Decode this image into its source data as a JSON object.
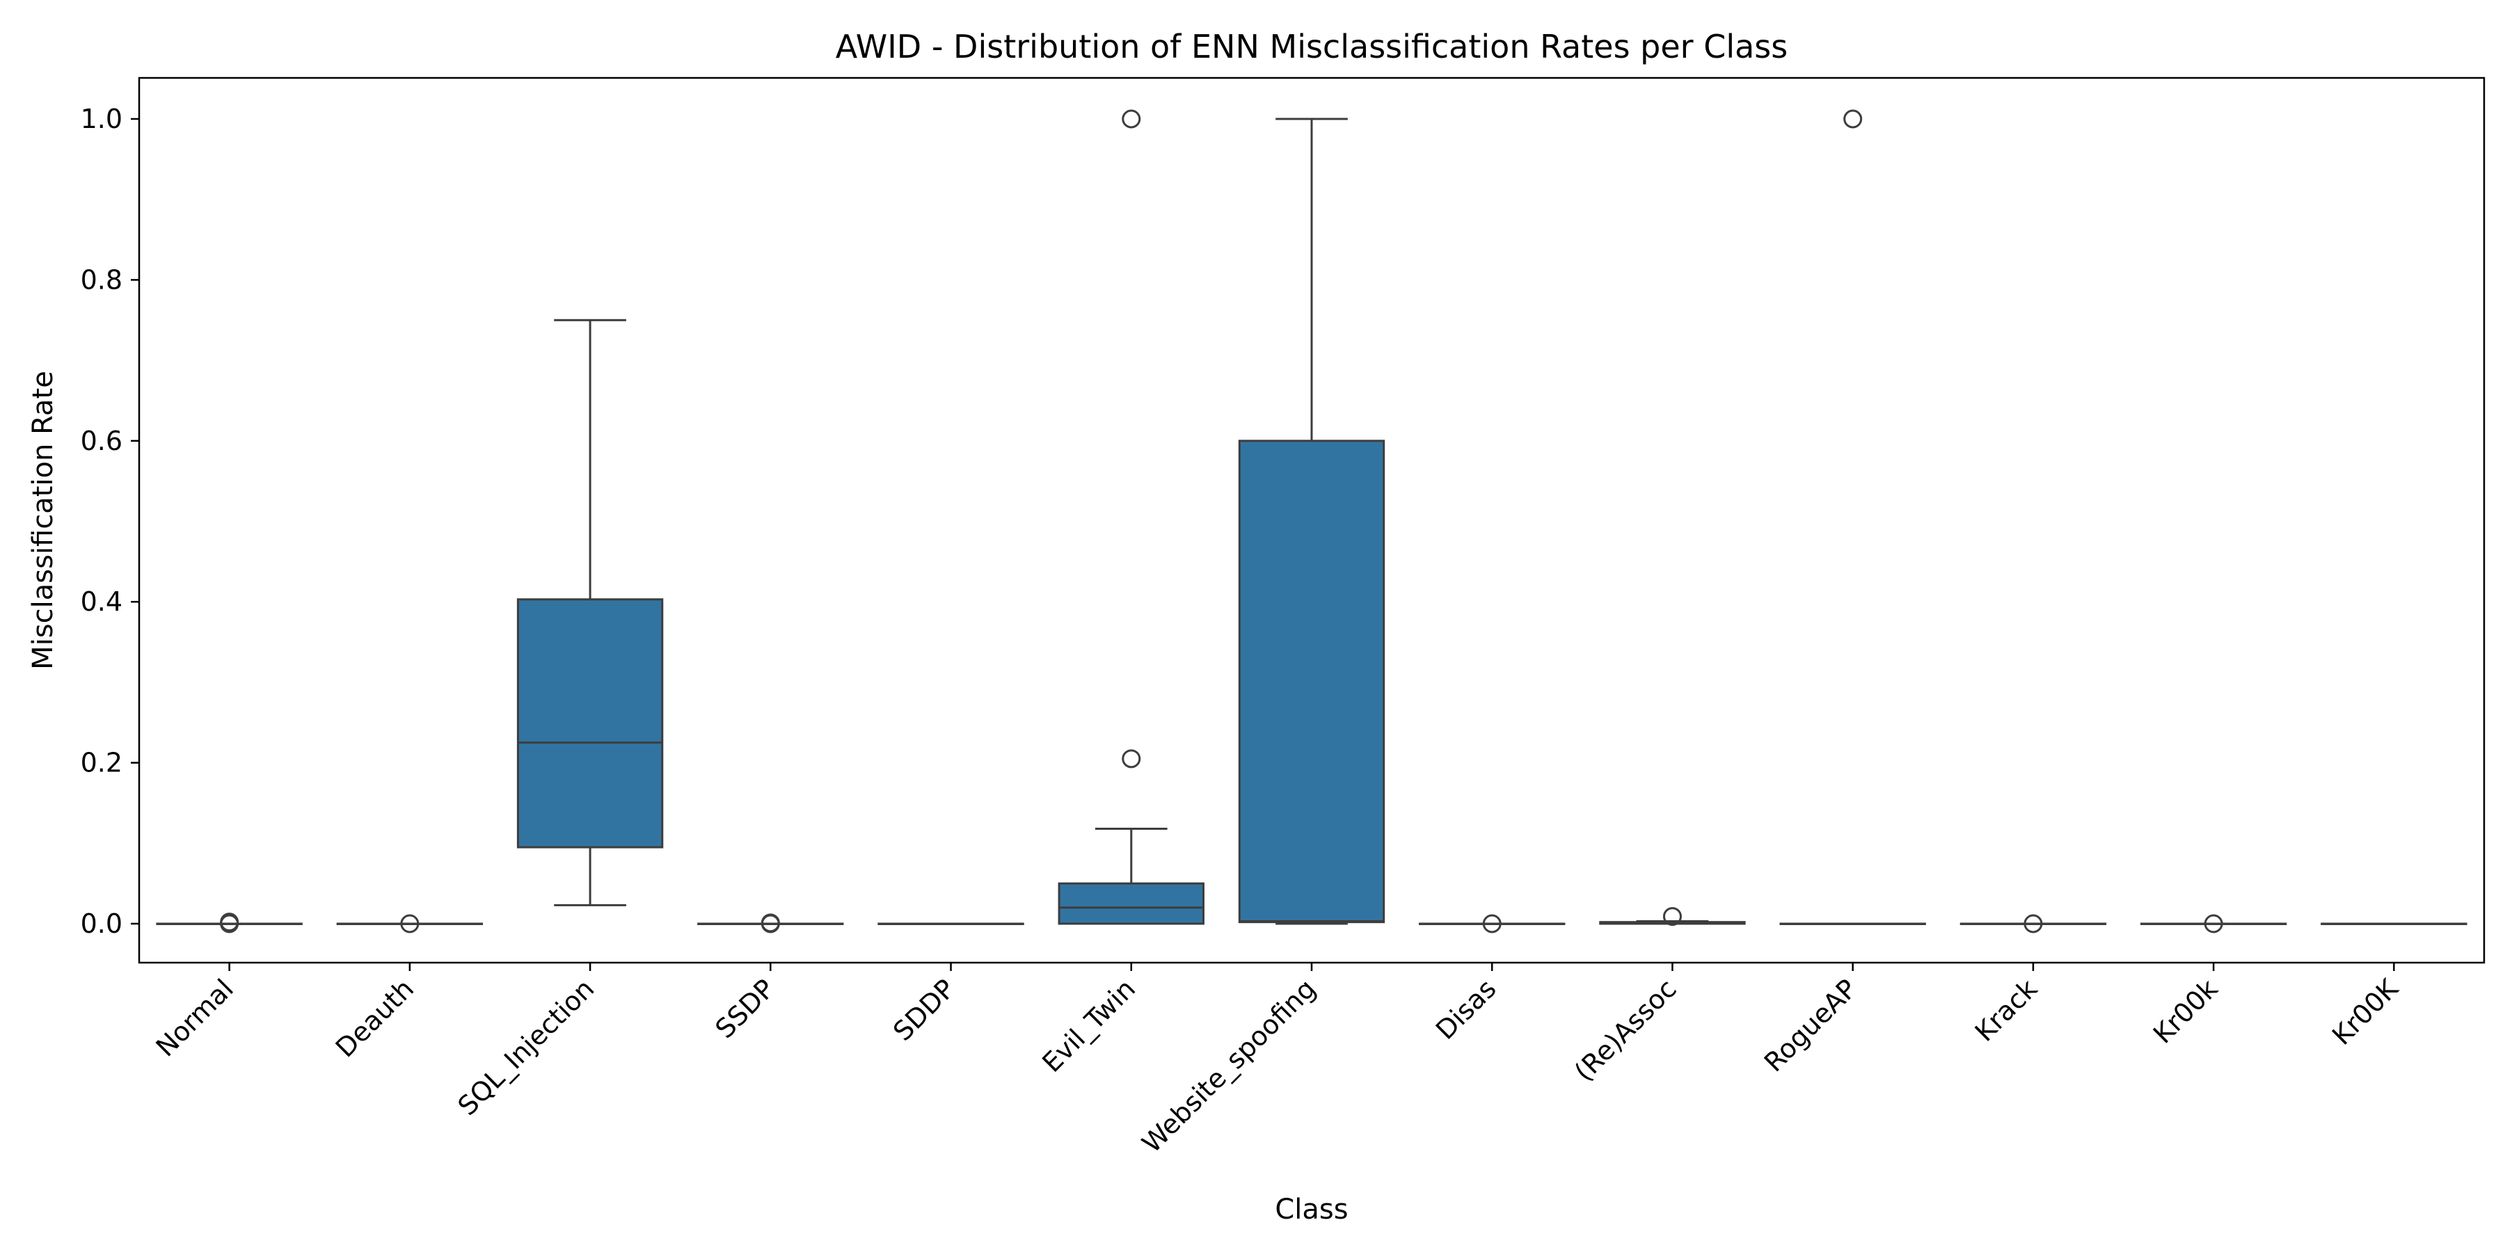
{
  "chart_data": {
    "type": "box",
    "title": "AWID - Distribution of ENN Misclassification Rates per Class",
    "xlabel": "Class",
    "ylabel": "Misclassification Rate",
    "ylim": [
      -0.052,
      1.05
    ],
    "yticks": [
      "0.0",
      "0.2",
      "0.4",
      "0.6",
      "0.8",
      "1.0"
    ],
    "grid": false,
    "legend": "none",
    "box_color": "#3274a1",
    "line_color": "#3d3d3d",
    "categories": [
      "Normal",
      "Deauth",
      "SQL_Injection",
      "SSDP",
      "SDDP",
      "Evil_Twin",
      "Website_spoofing",
      "Disas",
      "(Re)Assoc",
      "RogueAP",
      "Krack",
      "Kr00k",
      "Kr00K"
    ],
    "boxes": [
      {
        "category": "Normal",
        "q1": 0.0,
        "median": 0.0,
        "q3": 0.0,
        "whisker_low": 0.0,
        "whisker_high": 0.0,
        "outliers": [
          0.0,
          0.002
        ]
      },
      {
        "category": "Deauth",
        "q1": 0.0,
        "median": 0.0,
        "q3": 0.0,
        "whisker_low": 0.0,
        "whisker_high": 0.0,
        "outliers": [
          0.0
        ]
      },
      {
        "category": "SQL_Injection",
        "q1": 0.095,
        "median": 0.225,
        "q3": 0.403,
        "whisker_low": 0.023,
        "whisker_high": 0.75,
        "outliers": []
      },
      {
        "category": "SSDP",
        "q1": 0.0,
        "median": 0.0,
        "q3": 0.0,
        "whisker_low": 0.0,
        "whisker_high": 0.0,
        "outliers": [
          0.0,
          0.001
        ]
      },
      {
        "category": "SDDP",
        "q1": 0.0,
        "median": 0.0,
        "q3": 0.0,
        "whisker_low": 0.0,
        "whisker_high": 0.0,
        "outliers": []
      },
      {
        "category": "Evil_Twin",
        "q1": 0.0,
        "median": 0.02,
        "q3": 0.05,
        "whisker_low": 0.0,
        "whisker_high": 0.118,
        "outliers": [
          0.205,
          1.0
        ]
      },
      {
        "category": "Website_spoofing",
        "q1": 0.002,
        "median": 0.003,
        "q3": 0.6,
        "whisker_low": 0.0,
        "whisker_high": 1.0,
        "outliers": []
      },
      {
        "category": "Disas",
        "q1": 0.0,
        "median": 0.0,
        "q3": 0.0,
        "whisker_low": 0.0,
        "whisker_high": 0.0,
        "outliers": [
          0.0
        ]
      },
      {
        "category": "(Re)Assoc",
        "q1": 0.0,
        "median": 0.001,
        "q3": 0.002,
        "whisker_low": 0.0,
        "whisker_high": 0.003,
        "outliers": [
          0.009
        ]
      },
      {
        "category": "RogueAP",
        "q1": 0.0,
        "median": 0.0,
        "q3": 0.0,
        "whisker_low": 0.0,
        "whisker_high": 0.0,
        "outliers": [
          1.0
        ]
      },
      {
        "category": "Krack",
        "q1": 0.0,
        "median": 0.0,
        "q3": 0.0,
        "whisker_low": 0.0,
        "whisker_high": 0.0,
        "outliers": [
          0.0
        ]
      },
      {
        "category": "Kr00k",
        "q1": 0.0,
        "median": 0.0,
        "q3": 0.0,
        "whisker_low": 0.0,
        "whisker_high": 0.0,
        "outliers": [
          0.0
        ]
      },
      {
        "category": "Kr00K",
        "q1": 0.0,
        "median": 0.0,
        "q3": 0.0,
        "whisker_low": 0.0,
        "whisker_high": 0.0,
        "outliers": []
      }
    ]
  }
}
